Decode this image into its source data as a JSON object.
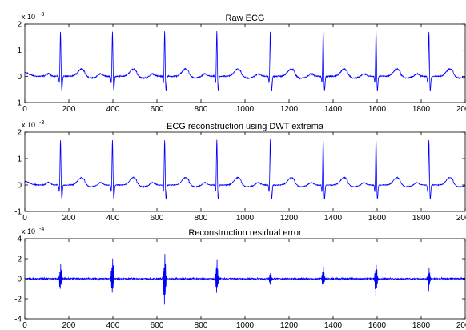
{
  "chart_data": [
    {
      "type": "line",
      "title": "Raw ECG",
      "xlabel": "",
      "ylabel": "",
      "xlim": [
        0,
        2000
      ],
      "ylim": [
        -1,
        2
      ],
      "y_multiplier": "x 10",
      "y_exponent": "-3",
      "x_ticks": [
        "0",
        "200",
        "400",
        "600",
        "800",
        "1000",
        "1200",
        "1400",
        "1600",
        "1800",
        "2000"
      ],
      "y_ticks": [
        "-1",
        "0",
        "1",
        "2"
      ],
      "grid": false,
      "color": "#0000ff",
      "baseline": 0,
      "r_peak_x": [
        162,
        398,
        635,
        872,
        1115,
        1355,
        1595,
        1835
      ],
      "r_peak_y": 1.75,
      "series": [
        {
          "values": []
        }
      ]
    },
    {
      "type": "line",
      "title": "ECG reconstruction using DWT extrema",
      "xlabel": "",
      "ylabel": "",
      "xlim": [
        0,
        2000
      ],
      "ylim": [
        -1,
        2
      ],
      "y_multiplier": "x 10",
      "y_exponent": "-3",
      "x_ticks": [
        "0",
        "200",
        "400",
        "600",
        "800",
        "1000",
        "1200",
        "1400",
        "1600",
        "1800",
        "2000"
      ],
      "y_ticks": [
        "-1",
        "0",
        "1",
        "2"
      ],
      "grid": false,
      "color": "#0000ff",
      "baseline": 0,
      "r_peak_x": [
        162,
        398,
        635,
        872,
        1115,
        1355,
        1595,
        1835
      ],
      "r_peak_y": 1.75,
      "series": [
        {
          "values": []
        }
      ]
    },
    {
      "type": "line",
      "title": "Reconstruction residual error",
      "xlabel": "",
      "ylabel": "",
      "xlim": [
        0,
        2000
      ],
      "ylim": [
        -4,
        4
      ],
      "y_multiplier": "x 10",
      "y_exponent": "-4",
      "x_ticks": [
        "0",
        "200",
        "400",
        "600",
        "800",
        "1000",
        "1200",
        "1400",
        "1600",
        "1800",
        "2000"
      ],
      "y_ticks": [
        "-4",
        "-2",
        "0",
        "2",
        "4"
      ],
      "grid": false,
      "color": "#0000ff",
      "baseline": 0,
      "error_bursts": [
        {
          "x": 162,
          "max": 1.4,
          "min": -1.2
        },
        {
          "x": 398,
          "max": 2.4,
          "min": -1.6
        },
        {
          "x": 635,
          "max": 2.4,
          "min": -2.6
        },
        {
          "x": 872,
          "max": 2.0,
          "min": -1.6
        },
        {
          "x": 1115,
          "max": 0.6,
          "min": -0.6
        },
        {
          "x": 1355,
          "max": 1.2,
          "min": -1.0
        },
        {
          "x": 1595,
          "max": 1.6,
          "min": -1.8
        },
        {
          "x": 1835,
          "max": 1.0,
          "min": -1.2
        }
      ],
      "series": [
        {
          "values": []
        }
      ]
    }
  ]
}
